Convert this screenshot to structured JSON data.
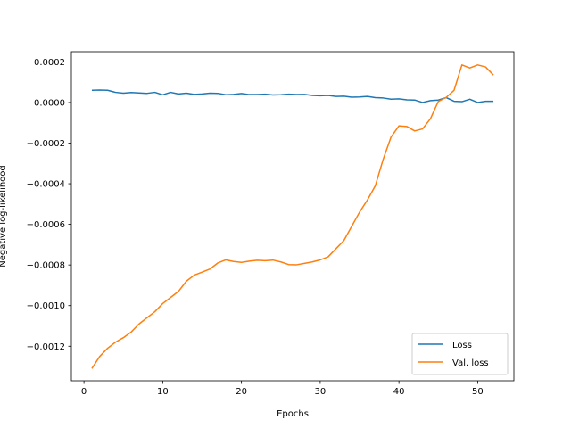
{
  "chart_data": {
    "type": "line",
    "title": "",
    "xlabel": "Epochs",
    "ylabel": "Negative log-likelihood",
    "xlim": [
      -1.6,
      54.6
    ],
    "ylim": [
      -0.00137,
      0.00025
    ],
    "xticks": [
      0,
      10,
      20,
      30,
      40,
      50
    ],
    "xtick_labels": [
      "0",
      "10",
      "20",
      "30",
      "40",
      "50"
    ],
    "yticks": [
      -0.0012,
      -0.001,
      -0.0008,
      -0.0006,
      -0.0004,
      -0.0002,
      0.0,
      0.0002
    ],
    "ytick_labels": [
      "−0.0012",
      "−0.0010",
      "−0.0008",
      "−0.0006",
      "−0.0004",
      "−0.0002",
      "0.0000",
      "0.0002"
    ],
    "grid": false,
    "legend_position": "lower-right",
    "x": [
      1,
      2,
      3,
      4,
      5,
      6,
      7,
      8,
      9,
      10,
      11,
      12,
      13,
      14,
      15,
      16,
      17,
      18,
      19,
      20,
      21,
      22,
      23,
      24,
      25,
      26,
      27,
      28,
      29,
      30,
      31,
      32,
      33,
      34,
      35,
      36,
      37,
      38,
      39,
      40,
      41,
      42,
      43,
      44,
      45,
      46,
      47,
      48,
      49,
      50,
      51,
      52
    ],
    "series": [
      {
        "name": "Loss",
        "color": "#1f77b4",
        "values": [
          6e-05,
          6.1e-05,
          6e-05,
          5e-05,
          4.6e-05,
          4.9e-05,
          4.7e-05,
          4.5e-05,
          5e-05,
          3.8e-05,
          5e-05,
          4.2e-05,
          4.6e-05,
          4e-05,
          4.2e-05,
          4.6e-05,
          4.5e-05,
          3.8e-05,
          4e-05,
          4.4e-05,
          3.9e-05,
          3.9e-05,
          4.1e-05,
          3.7e-05,
          3.8e-05,
          4.1e-05,
          3.9e-05,
          4e-05,
          3.5e-05,
          3.3e-05,
          3.5e-05,
          3e-05,
          3.1e-05,
          2.6e-05,
          2.7e-05,
          3e-05,
          2.4e-05,
          2.2e-05,
          1.6e-05,
          1.8e-05,
          1.3e-05,
          1.2e-05,
          0.0,
          9e-06,
          1.2e-05,
          2.4e-05,
          6e-06,
          4e-06,
          1.6e-05,
          0.0,
          6e-06,
          6e-06
        ]
      },
      {
        "name": "Val. loss",
        "color": "#ff7f0e",
        "values": [
          -0.00131,
          -0.00125,
          -0.00121,
          -0.00118,
          -0.001158,
          -0.00113,
          -0.00109,
          -0.00106,
          -0.00103,
          -0.00099,
          -0.00096,
          -0.00093,
          -0.00088,
          -0.00085,
          -0.000835,
          -0.00082,
          -0.00079,
          -0.000775,
          -0.000783,
          -0.000787,
          -0.000781,
          -0.000777,
          -0.000779,
          -0.000776,
          -0.000785,
          -0.000798,
          -0.000799,
          -0.000792,
          -0.000785,
          -0.000775,
          -0.00076,
          -0.00072,
          -0.00068,
          -0.00061,
          -0.00054,
          -0.00048,
          -0.00041,
          -0.00028,
          -0.00017,
          -0.000115,
          -0.000118,
          -0.00014,
          -0.00013,
          -8e-05,
          5e-06,
          2.5e-05,
          6e-05,
          0.000185,
          0.00017,
          0.000185,
          0.000175,
          0.000135
        ]
      }
    ]
  }
}
